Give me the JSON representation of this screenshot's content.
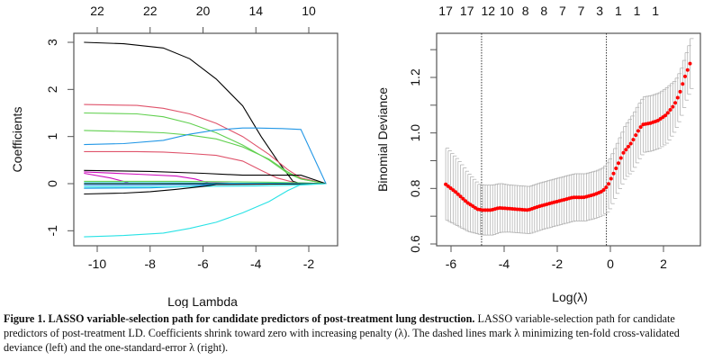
{
  "chart_data": [
    {
      "type": "line",
      "title": "",
      "xlabel": "Log Lambda",
      "ylabel": "Coefficients",
      "xlim": [
        -10.6,
        -1.3
      ],
      "ylim": [
        -1.25,
        3.1
      ],
      "xticks": [
        -10,
        -8,
        -6,
        -4,
        -2
      ],
      "yticks": [
        -1,
        0,
        1,
        2,
        3
      ],
      "top_axis_labels": [
        {
          "x": -10,
          "label": "22"
        },
        {
          "x": -8,
          "label": "22"
        },
        {
          "x": -6,
          "label": "20"
        },
        {
          "x": -4,
          "label": "14"
        },
        {
          "x": -2,
          "label": "10"
        }
      ],
      "grid": false,
      "legend": "none",
      "series": [
        {
          "name": "coef-1",
          "color": "#000000",
          "x": [
            -10.5,
            -9,
            -7.5,
            -6.5,
            -5.5,
            -4.5,
            -3.8,
            -3.2,
            -2.6,
            -2.3,
            -1.35
          ],
          "y": [
            3.0,
            2.97,
            2.88,
            2.65,
            2.22,
            1.65,
            1.0,
            0.5,
            0.05,
            0,
            0
          ]
        },
        {
          "name": "coef-2",
          "color": "#df536b",
          "x": [
            -10.5,
            -8.5,
            -7.5,
            -6.5,
            -5.5,
            -4.5,
            -3.5,
            -2.8,
            -2.3,
            -1.35
          ],
          "y": [
            1.68,
            1.66,
            1.6,
            1.48,
            1.28,
            1.0,
            0.62,
            0.3,
            0.12,
            0
          ]
        },
        {
          "name": "coef-3",
          "color": "#61d04f",
          "x": [
            -10.5,
            -8.5,
            -7.5,
            -6.5,
            -5.5,
            -4.5,
            -3.5,
            -2.8,
            -2.3,
            -1.35
          ],
          "y": [
            1.5,
            1.48,
            1.42,
            1.28,
            1.08,
            0.82,
            0.5,
            0.22,
            0.1,
            0
          ]
        },
        {
          "name": "coef-4",
          "color": "#61d04f",
          "x": [
            -10.5,
            -8.5,
            -7.5,
            -6.5,
            -5.5,
            -4.5,
            -3.5,
            -2.8,
            -2.3,
            -1.35
          ],
          "y": [
            1.13,
            1.1,
            1.08,
            1.03,
            0.95,
            0.78,
            0.52,
            0.25,
            0.1,
            0
          ]
        },
        {
          "name": "coef-5",
          "color": "#2297e6",
          "x": [
            -10.5,
            -9,
            -7.5,
            -6.5,
            -5.5,
            -4.5,
            -4,
            -3,
            -2.3,
            -1.35
          ],
          "y": [
            0.83,
            0.85,
            0.92,
            1.05,
            1.14,
            1.18,
            1.18,
            1.17,
            1.15,
            0
          ]
        },
        {
          "name": "coef-6",
          "color": "#df536b",
          "x": [
            -10.5,
            -8.5,
            -7.5,
            -6.5,
            -5.5,
            -4.5,
            -3.8,
            -3.2,
            -2.5,
            -1.35
          ],
          "y": [
            0.68,
            0.68,
            0.67,
            0.64,
            0.6,
            0.48,
            0.28,
            0.12,
            0.02,
            0
          ]
        },
        {
          "name": "coef-7",
          "color": "#000000",
          "x": [
            -10.5,
            -8,
            -6,
            -4.5,
            -3,
            -2.3,
            -1.35
          ],
          "y": [
            0.28,
            0.26,
            0.22,
            0.18,
            0.18,
            0.18,
            0
          ]
        },
        {
          "name": "coef-8",
          "color": "#cd0bbc",
          "x": [
            -10.5,
            -8.5,
            -7,
            -6.3,
            -5.8,
            -4,
            -2.5,
            -1.35
          ],
          "y": [
            0.25,
            0.2,
            0.16,
            0.1,
            0.02,
            0,
            0,
            0
          ]
        },
        {
          "name": "coef-9",
          "color": "#cd0bbc",
          "x": [
            -10.5,
            -9.5,
            -8.8,
            -7,
            -4,
            -1.35
          ],
          "y": [
            0.22,
            0.12,
            0.02,
            0,
            0,
            0
          ]
        },
        {
          "name": "coef-10",
          "color": "#61d04f",
          "x": [
            -10.5,
            -7,
            -5,
            -3.5,
            -2.3,
            -1.35
          ],
          "y": [
            0.05,
            0.05,
            0.04,
            0.03,
            0.02,
            0
          ]
        },
        {
          "name": "coef-11",
          "color": "#28e2e5",
          "x": [
            -10.5,
            -7,
            -5,
            -3,
            -1.35
          ],
          "y": [
            0.02,
            0.02,
            0.01,
            0.01,
            0
          ]
        },
        {
          "name": "coef-12",
          "color": "#000000",
          "x": [
            -10.5,
            -7,
            -5,
            -3,
            -1.35
          ],
          "y": [
            0,
            0,
            0,
            0,
            0
          ]
        },
        {
          "name": "coef-13",
          "color": "#2297e6",
          "x": [
            -10.5,
            -8,
            -6,
            -5,
            -1.35
          ],
          "y": [
            -0.03,
            -0.03,
            -0.02,
            0,
            0
          ]
        },
        {
          "name": "coef-14",
          "color": "#2297e6",
          "x": [
            -10.5,
            -8,
            -6.5,
            -5.5,
            -1.35
          ],
          "y": [
            -0.1,
            -0.09,
            -0.06,
            -0.02,
            0
          ]
        },
        {
          "name": "coef-15",
          "color": "#28e2e5",
          "x": [
            -10.5,
            -8,
            -6,
            -4,
            -2.3,
            -1.35
          ],
          "y": [
            -0.07,
            -0.07,
            -0.06,
            -0.05,
            -0.03,
            0
          ]
        },
        {
          "name": "coef-16",
          "color": "#000000",
          "x": [
            -10.5,
            -9,
            -8,
            -7,
            -6,
            -5.5,
            -1.35
          ],
          "y": [
            -0.22,
            -0.2,
            -0.17,
            -0.12,
            -0.06,
            -0.02,
            0
          ]
        },
        {
          "name": "coef-17",
          "color": "#28e2e5",
          "x": [
            -10.5,
            -9,
            -7.5,
            -6.5,
            -5.5,
            -4.5,
            -3.5,
            -2.8,
            -2.3,
            -1.35
          ],
          "y": [
            -1.13,
            -1.1,
            -1.05,
            -0.95,
            -0.82,
            -0.62,
            -0.38,
            -0.15,
            -0.02,
            0
          ]
        }
      ]
    },
    {
      "type": "scatter",
      "title": "",
      "xlabel": "Log(λ)",
      "ylabel": "Binomial Deviance",
      "xlim": [
        -6.4,
        3.3
      ],
      "ylim": [
        0.59,
        1.35
      ],
      "xticks": [
        -6,
        -4,
        -2,
        0,
        2
      ],
      "yticks": [
        0.6,
        0.7,
        0.8,
        0.9,
        1.0,
        1.1,
        1.2,
        1.3
      ],
      "ytick_labels": [
        "0.6",
        "",
        "0.8",
        "",
        "1.0",
        "",
        "1.2",
        ""
      ],
      "top_axis_labels": [
        {
          "x": -6.2,
          "label": "17"
        },
        {
          "x": -5.4,
          "label": "17"
        },
        {
          "x": -4.6,
          "label": "12"
        },
        {
          "x": -3.9,
          "label": "10"
        },
        {
          "x": -3.2,
          "label": "8"
        },
        {
          "x": -2.5,
          "label": "8"
        },
        {
          "x": -1.8,
          "label": "7"
        },
        {
          "x": -1.1,
          "label": "7"
        },
        {
          "x": -0.4,
          "label": "3"
        },
        {
          "x": 0.3,
          "label": "1"
        },
        {
          "x": 1.0,
          "label": "1"
        },
        {
          "x": 1.7,
          "label": "1"
        }
      ],
      "vlines": [
        -4.85,
        -0.15
      ],
      "grid": false,
      "legend": "none",
      "point_color": "#ff0000",
      "errorbar_color": "#b3b3b3",
      "curve_knots": {
        "x": [
          -6.2,
          -5.8,
          -5.4,
          -5.0,
          -4.8,
          -4.5,
          -4.2,
          -3.9,
          -3.5,
          -3.1,
          -2.7,
          -2.2,
          -1.8,
          -1.4,
          -1.0,
          -0.6,
          -0.3,
          -0.1,
          0.2,
          0.5,
          0.8,
          1.0,
          1.2,
          1.5,
          1.8,
          2.1,
          2.4,
          2.6,
          2.8,
          3.0
        ],
        "y": [
          0.815,
          0.785,
          0.75,
          0.725,
          0.722,
          0.722,
          0.73,
          0.728,
          0.725,
          0.722,
          0.735,
          0.748,
          0.758,
          0.768,
          0.768,
          0.778,
          0.79,
          0.81,
          0.87,
          0.93,
          0.965,
          1.0,
          1.03,
          1.035,
          1.045,
          1.065,
          1.1,
          1.14,
          1.2,
          1.25
        ],
        "sd": [
          0.13,
          0.12,
          0.105,
          0.09,
          0.09,
          0.09,
          0.088,
          0.085,
          0.085,
          0.085,
          0.085,
          0.085,
          0.085,
          0.085,
          0.085,
          0.085,
          0.085,
          0.09,
          0.09,
          0.095,
          0.1,
          0.1,
          0.1,
          0.1,
          0.1,
          0.1,
          0.09,
          0.085,
          0.085,
          0.09
        ]
      },
      "n_points": 100
    }
  ],
  "caption": {
    "bold": "Figure 1. LASSO variable-selection path for candidate predictors of post-treatment lung destruction.",
    "text": " LASSO variable-selection path for candidate predictors of post-treatment LD. Coefficients shrink toward zero with increasing penalty (λ). The dashed lines mark λ minimizing ten-fold cross-validated deviance (left) and the one-standard-error λ (right)."
  }
}
